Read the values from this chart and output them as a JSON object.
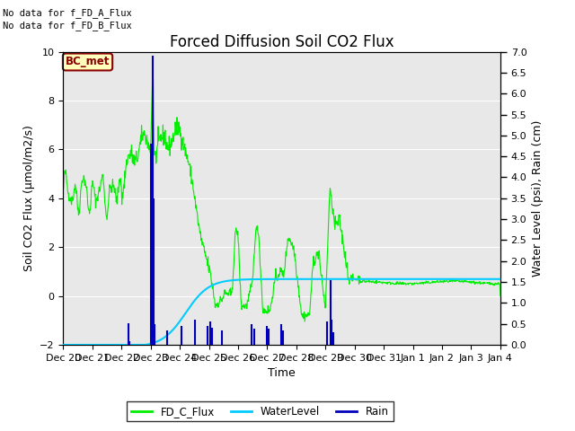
{
  "title": "Forced Diffusion Soil CO2 Flux",
  "xlabel": "Time",
  "ylabel_left": "Soil CO2 Flux (μmol/m2/s)",
  "ylabel_right": "Water Level (psi), Rain (cm)",
  "ylim_left": [
    -2,
    10
  ],
  "ylim_right": [
    0.0,
    7.0
  ],
  "yticks_left": [
    -2,
    0,
    2,
    4,
    6,
    8,
    10
  ],
  "yticks_right": [
    0.0,
    0.5,
    1.0,
    1.5,
    2.0,
    2.5,
    3.0,
    3.5,
    4.0,
    4.5,
    5.0,
    5.5,
    6.0,
    6.5,
    7.0
  ],
  "no_data_text1": "No data for f_FD_A_Flux",
  "no_data_text2": "No data for f_FD_B_Flux",
  "bc_met_label": "BC_met",
  "legend_entries": [
    "FD_C_Flux",
    "WaterLevel",
    "Rain"
  ],
  "fd_c_color": "#00ee00",
  "water_color": "#00ccff",
  "rain_color": "#0000bb",
  "background_color": "#e8e8e8",
  "title_fontsize": 12,
  "axis_fontsize": 9,
  "tick_fontsize": 8,
  "xtick_labels": [
    "Dec 20",
    "Dec 21",
    "Dec 22",
    "Dec 23",
    "Dec 24",
    "Dec 25",
    "Dec 26",
    "Dec 27",
    "Dec 28",
    "Dec 29",
    "Dec 30",
    "Dec 31",
    "Jan 1",
    "Jan 2",
    "Jan 3",
    "Jan 4"
  ],
  "xtick_positions": [
    0,
    1,
    2,
    3,
    4,
    5,
    6,
    7,
    8,
    9,
    10,
    11,
    12,
    13,
    14,
    15
  ]
}
